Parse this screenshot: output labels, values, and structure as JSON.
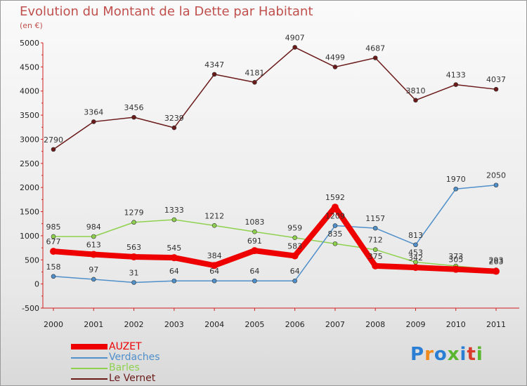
{
  "chart_data": {
    "type": "line",
    "title": "Evolution du Montant de la Dette par Habitant",
    "subtitle": "(en €)",
    "categories": [
      "2000",
      "2001",
      "2002",
      "2003",
      "2004",
      "2005",
      "2006",
      "2007",
      "2008",
      "2009",
      "2010",
      "2011"
    ],
    "y_ticks": [
      "-500",
      "0",
      "500",
      "1000",
      "1500",
      "2000",
      "2500",
      "3000",
      "3500",
      "4000",
      "4500",
      "5000"
    ],
    "ylim": [
      -500,
      5000
    ],
    "grid": false,
    "legend_position": "bottom-left",
    "series": [
      {
        "name": "Le Vernet",
        "color": "#6b1a1a",
        "values": [
          2790,
          3364,
          3456,
          3239,
          4347,
          4181,
          4907,
          4499,
          4687,
          3810,
          4133,
          4037
        ],
        "labels": [
          "2790",
          "3364",
          "3456",
          "3239",
          "4347",
          "4181",
          "4907",
          "4499",
          "4687",
          "3810",
          "4133",
          "4037"
        ]
      },
      {
        "name": "Barles",
        "color": "#8fd14f",
        "values": [
          985,
          984,
          1279,
          1333,
          1212,
          1083,
          959,
          835,
          712,
          453,
          373,
          293
        ],
        "labels": [
          "985",
          "984",
          "1279",
          "1333",
          "1212",
          "1083",
          "959",
          "835",
          "712",
          "453",
          "373",
          "293"
        ]
      },
      {
        "name": "Verdaches",
        "color": "#4f8fca",
        "values": [
          158,
          97,
          31,
          64,
          64,
          64,
          64,
          1209,
          1157,
          813,
          1970,
          2050
        ],
        "labels": [
          "158",
          "97",
          "31",
          "64",
          "64",
          "64",
          "64",
          "1209",
          "1157",
          "813",
          "1970",
          "2050"
        ]
      },
      {
        "name": "AUZET",
        "color": "#ee0000",
        "values": [
          677,
          613,
          563,
          545,
          384,
          691,
          583,
          1592,
          375,
          342,
          305,
          263
        ],
        "labels": [
          "677",
          "613",
          "563",
          "545",
          "384",
          "691",
          "583",
          "1592",
          "375",
          "342",
          "305",
          "263"
        ]
      }
    ]
  },
  "legend": {
    "items": [
      {
        "label": "AUZET",
        "color": "#ee0000"
      },
      {
        "label": "Verdaches",
        "color": "#4f8fca"
      },
      {
        "label": "Barles",
        "color": "#8fd14f"
      },
      {
        "label": "Le Vernet",
        "color": "#6b1a1a"
      }
    ]
  },
  "logo": {
    "text": "Proxiti",
    "colors": [
      "#2a7fd4",
      "#f08a1c",
      "#2a7fd4",
      "#5ab52f",
      "#2a7fd4",
      "#d83b2c",
      "#5ab52f"
    ]
  }
}
